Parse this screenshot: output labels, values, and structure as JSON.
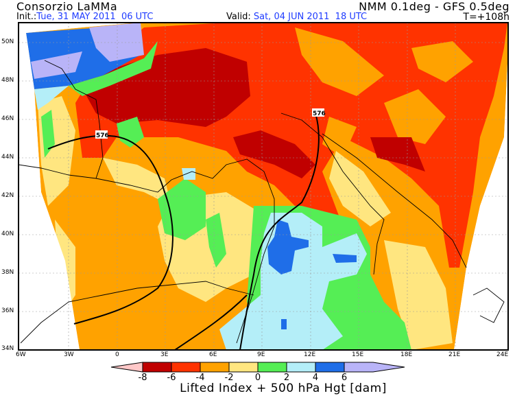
{
  "header": {
    "org": "Consorzio LaMMa",
    "model": "NMM 0.1deg - GFS 0.5deg",
    "init_label": "Init.:",
    "init_value": "Tue, 31 MAY 2011  06 UTC",
    "valid_label": "Valid:",
    "valid_value": "Sat, 04 JUN 2011  18 UTC",
    "lead_time": "T=+108h"
  },
  "map": {
    "lat_labels": [
      "50N",
      "48N",
      "46N",
      "44N",
      "42N",
      "40N",
      "38N",
      "36N",
      "34N"
    ],
    "lon_labels": [
      "6W",
      "3W",
      "0",
      "3E",
      "6E",
      "9E",
      "12E",
      "15E",
      "18E",
      "21E",
      "24E"
    ],
    "contour_labels": [
      "576",
      "576"
    ]
  },
  "colorbar": {
    "title": "Lifted Index + 500 hPa Hgt [dam]",
    "ticks": [
      "-8",
      "-6",
      "-4",
      "-2",
      "0",
      "2",
      "4",
      "6"
    ],
    "colors": [
      "#ffc8c8",
      "#c00000",
      "#ff3300",
      "#ffa200",
      "#ffe680",
      "#55ee55",
      "#b4eef8",
      "#1f6ee8",
      "#b9b4f8"
    ]
  }
}
